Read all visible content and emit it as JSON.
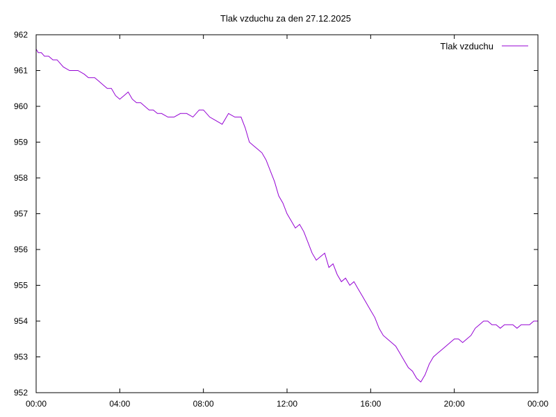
{
  "chart_data": {
    "type": "line",
    "title": "Tlak vzduchu za den 27.12.2025",
    "xlabel": "",
    "ylabel": "",
    "x_range_hours": [
      0,
      24
    ],
    "ylim": [
      952,
      962
    ],
    "grid": false,
    "legend_position": "top-right",
    "x_ticks": [
      {
        "hour": 0,
        "label": "00:00"
      },
      {
        "hour": 4,
        "label": "04:00"
      },
      {
        "hour": 8,
        "label": "08:00"
      },
      {
        "hour": 12,
        "label": "12:00"
      },
      {
        "hour": 16,
        "label": "16:00"
      },
      {
        "hour": 20,
        "label": "20:00"
      },
      {
        "hour": 24,
        "label": "00:00"
      }
    ],
    "y_ticks": [
      952,
      953,
      954,
      955,
      956,
      957,
      958,
      959,
      960,
      961,
      962
    ],
    "series": [
      {
        "name": "Tlak vzduchu",
        "color": "#9400d3",
        "x_hours": [
          0.0,
          0.1,
          0.25,
          0.4,
          0.6,
          0.8,
          1.0,
          1.3,
          1.6,
          1.8,
          2.0,
          2.3,
          2.5,
          2.8,
          3.0,
          3.2,
          3.4,
          3.6,
          3.8,
          4.0,
          4.2,
          4.4,
          4.6,
          4.8,
          5.0,
          5.2,
          5.4,
          5.6,
          5.8,
          6.0,
          6.3,
          6.6,
          6.9,
          7.2,
          7.5,
          7.8,
          8.0,
          8.3,
          8.6,
          8.9,
          9.2,
          9.5,
          9.8,
          10.0,
          10.2,
          10.4,
          10.6,
          10.8,
          11.0,
          11.2,
          11.4,
          11.6,
          11.8,
          12.0,
          12.2,
          12.4,
          12.6,
          12.8,
          13.0,
          13.2,
          13.4,
          13.6,
          13.8,
          14.0,
          14.2,
          14.4,
          14.6,
          14.8,
          15.0,
          15.2,
          15.4,
          15.6,
          15.8,
          16.0,
          16.2,
          16.4,
          16.6,
          16.8,
          17.0,
          17.2,
          17.4,
          17.6,
          17.8,
          18.0,
          18.2,
          18.4,
          18.6,
          18.8,
          19.0,
          19.2,
          19.4,
          19.6,
          19.8,
          20.0,
          20.2,
          20.4,
          20.6,
          20.8,
          21.0,
          21.2,
          21.4,
          21.6,
          21.8,
          22.0,
          22.2,
          22.4,
          22.6,
          22.8,
          23.0,
          23.2,
          23.4,
          23.6,
          23.8,
          24.0
        ],
        "values": [
          961.6,
          961.5,
          961.5,
          961.4,
          961.4,
          961.3,
          961.3,
          961.1,
          961.0,
          961.0,
          961.0,
          960.9,
          960.8,
          960.8,
          960.7,
          960.6,
          960.5,
          960.5,
          960.3,
          960.2,
          960.3,
          960.4,
          960.2,
          960.1,
          960.1,
          960.0,
          959.9,
          959.9,
          959.8,
          959.8,
          959.7,
          959.7,
          959.8,
          959.8,
          959.7,
          959.9,
          959.9,
          959.7,
          959.6,
          959.5,
          959.8,
          959.7,
          959.7,
          959.4,
          959.0,
          958.9,
          958.8,
          958.7,
          958.5,
          958.2,
          957.9,
          957.5,
          957.3,
          957.0,
          956.8,
          956.6,
          956.7,
          956.5,
          956.2,
          955.9,
          955.7,
          955.8,
          955.9,
          955.5,
          955.6,
          955.3,
          955.1,
          955.2,
          955.0,
          955.1,
          954.9,
          954.7,
          954.5,
          954.3,
          954.1,
          953.8,
          953.6,
          953.5,
          953.4,
          953.3,
          953.1,
          952.9,
          952.7,
          952.6,
          952.4,
          952.3,
          952.5,
          952.8,
          953.0,
          953.1,
          953.2,
          953.3,
          953.4,
          953.5,
          953.5,
          953.4,
          953.5,
          953.6,
          953.8,
          953.9,
          954.0,
          954.0,
          953.9,
          953.9,
          953.8,
          953.9,
          953.9,
          953.9,
          953.8,
          953.9,
          953.9,
          953.9,
          954.0,
          954.0
        ]
      }
    ]
  }
}
